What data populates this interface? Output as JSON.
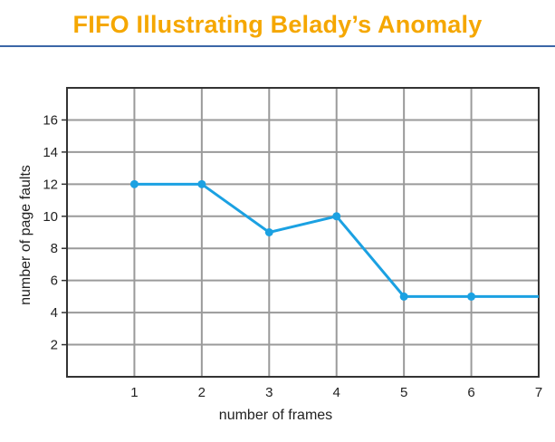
{
  "page": {
    "title": "FIFO Illustrating Belady’s Anomaly",
    "rule_color": "#3B66A7",
    "title_color": "#F5A700"
  },
  "chart_data": {
    "type": "line",
    "title": "",
    "xlabel": "number of frames",
    "ylabel": "number of page faults",
    "xlim": [
      0,
      7
    ],
    "ylim": [
      0,
      18
    ],
    "x_ticks": [
      1,
      2,
      3,
      4,
      5,
      6,
      7
    ],
    "y_ticks": [
      2,
      4,
      6,
      8,
      10,
      12,
      14,
      16
    ],
    "grid": true,
    "series": [
      {
        "x": [
          1,
          2,
          3,
          4,
          5,
          6,
          7
        ],
        "y": [
          12,
          12,
          9,
          10,
          5,
          5,
          5
        ],
        "markers": [
          true,
          true,
          true,
          true,
          true,
          true,
          false
        ],
        "color": "#1BA1E2"
      }
    ]
  }
}
